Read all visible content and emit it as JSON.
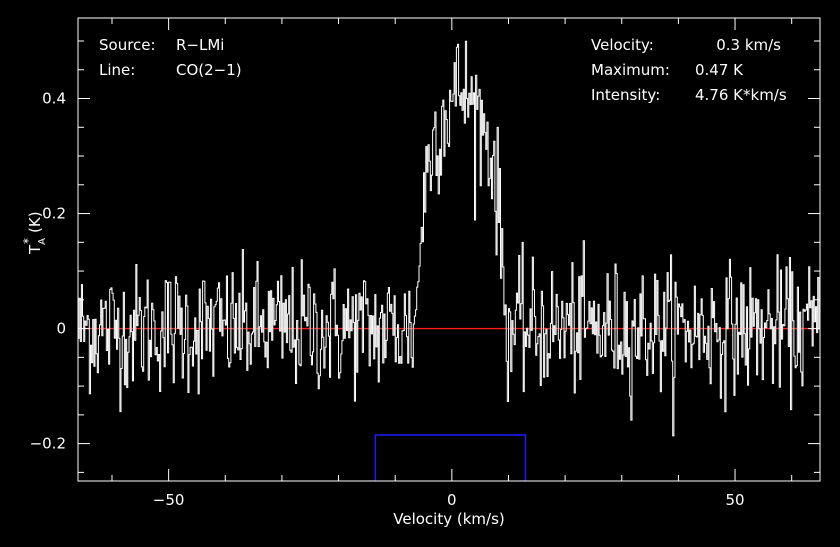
{
  "chart_data": {
    "type": "line",
    "title": "",
    "xlabel": "Velocity (km/s)",
    "ylabel_main": "T",
    "ylabel_sup": "*",
    "ylabel_sub": "A",
    "ylabel_unit": "(K)",
    "xlim": [
      -66,
      65
    ],
    "ylim": [
      -0.265,
      0.54
    ],
    "x_ticks": [
      -50,
      0,
      50
    ],
    "x_tick_labels": [
      "−50",
      "0",
      "50"
    ],
    "y_ticks": [
      -0.2,
      0,
      0.2,
      0.4
    ],
    "y_tick_labels": [
      "−0.2",
      "0",
      "0.2",
      "0.4"
    ],
    "baseline_y": 0,
    "window": {
      "x_start": -13.5,
      "x_end": 13.0,
      "top_y": -0.185
    },
    "series": [
      {
        "noise_rms": 0.055,
        "peak": {
          "center": 1.5,
          "amplitude": 0.42,
          "half_width": 8.0
        },
        "channel_width": 0.2
      }
    ],
    "info_left": [
      {
        "key": "Source:",
        "value": "R−LMi"
      },
      {
        "key": "Line:",
        "value": "CO(2−1)"
      }
    ],
    "info_right": [
      {
        "key": "Velocity:",
        "value": "0.3 km/s"
      },
      {
        "key": "Maximum:",
        "value": "0.47 K"
      },
      {
        "key": "Intensity:",
        "value": "4.76 K*km/s"
      }
    ],
    "colors": {
      "background": "#000000",
      "spectrum": "#ffffff",
      "baseline": "#ff2020",
      "window": "#1a1aff",
      "axes": "#ffffff"
    }
  }
}
